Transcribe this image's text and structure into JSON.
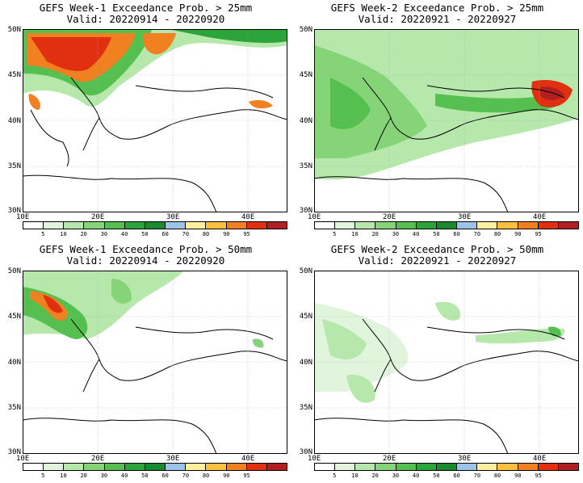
{
  "panels": [
    {
      "title": "GEFS Week-1 Exceedance Prob. > 25mm",
      "valid": "Valid: 20220914 - 20220920"
    },
    {
      "title": "GEFS Week-2 Exceedance Prob. > 25mm",
      "valid": "Valid: 20220921 - 20220927"
    },
    {
      "title": "GEFS Week-1 Exceedance Prob. > 50mm",
      "valid": "Valid: 20220914 - 20220920"
    },
    {
      "title": "GEFS Week-2 Exceedance Prob. > 50mm",
      "valid": "Valid: 20220921 - 20220927"
    }
  ],
  "lat_labels": [
    "50N",
    "45N",
    "40N",
    "35N",
    "30N"
  ],
  "lon_labels": [
    "10E",
    "20E",
    "30E",
    "40E"
  ],
  "colorbar": {
    "labels": [
      "5",
      "10",
      "20",
      "30",
      "40",
      "50",
      "60",
      "70",
      "80",
      "90",
      "95"
    ],
    "colors": [
      "#ffffff",
      "#e0f5dc",
      "#b5e8aa",
      "#86d478",
      "#55bf4f",
      "#2da43a",
      "#1a8a2f",
      "#9bc4e8",
      "#fff0a0",
      "#ffc040",
      "#f08020",
      "#e03010",
      "#b02020"
    ]
  }
}
